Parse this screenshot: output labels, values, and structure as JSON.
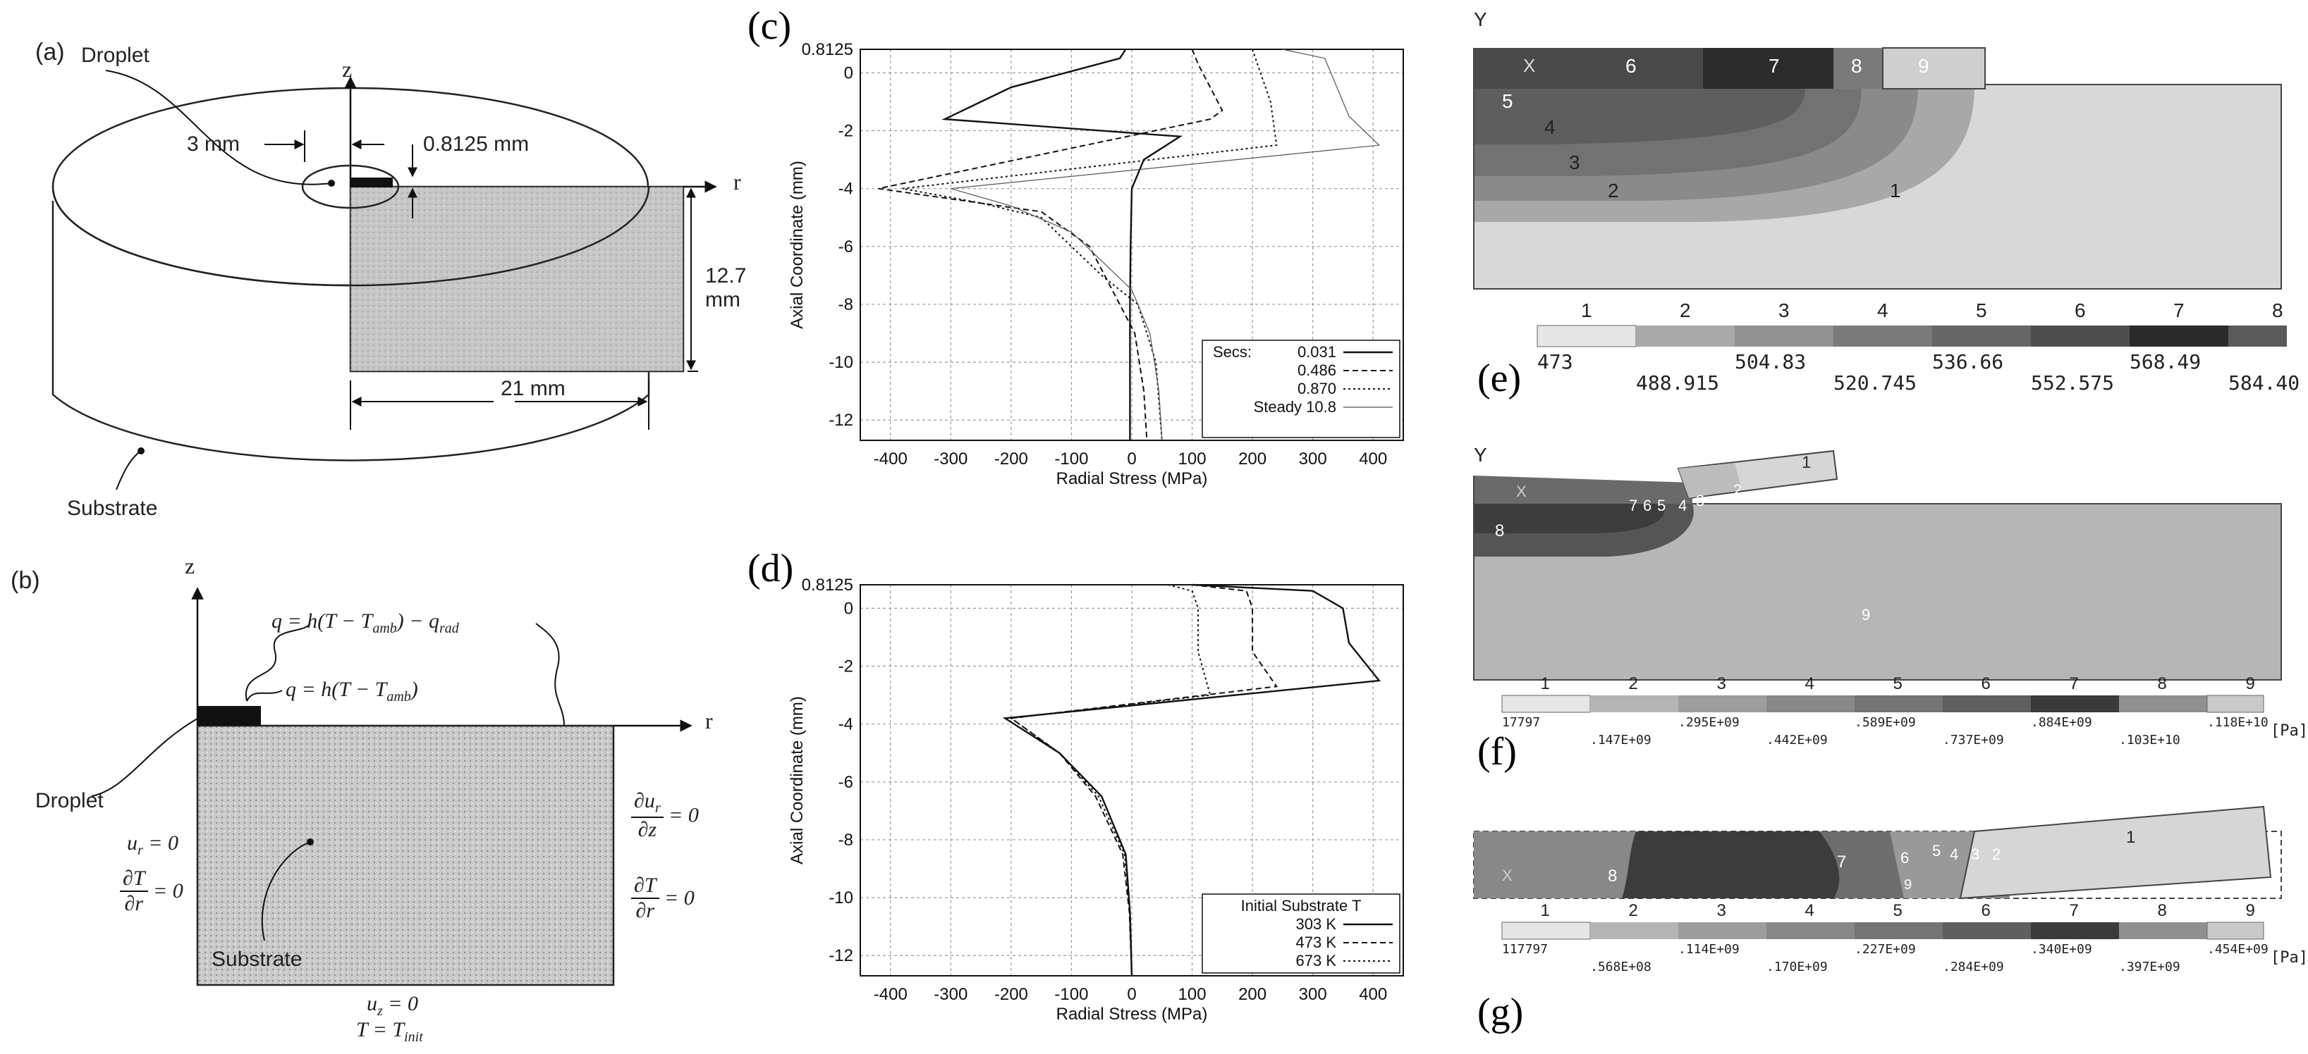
{
  "panels": {
    "a": {
      "label": "(a)",
      "droplet": "Droplet",
      "substrate": "Substrate",
      "axis_z": "z",
      "axis_r": "r",
      "dim_3mm": "3 mm",
      "dim_thickness": "0.8125 mm",
      "dim_height": "12.7 mm",
      "dim_radius": "21 mm"
    },
    "b": {
      "label": "(b)",
      "axis_z": "z",
      "axis_r": "r",
      "droplet": "Droplet",
      "substrate": "Substrate",
      "bc_top_rad": "q = h(T − T",
      "bc_top_rad_sub": "amb",
      "bc_top_rad_end": ") − q",
      "bc_top_rad_sub2": "rad",
      "bc_top": "q = h(T − T",
      "bc_top_sub": "amb",
      "bc_top_end": ")",
      "bc_left_u": "u",
      "bc_left_u_sub": "r",
      "bc_left_u_val": " = 0",
      "bc_left_dT": "∂T",
      "bc_left_dr": "∂r",
      "bc_right_dT": "∂T",
      "bc_right_dr": "∂r",
      "bc_right_du": "∂u",
      "bc_right_du_sub": "r",
      "bc_right_dz": "∂z",
      "eq_zero": "= 0",
      "bc_bottom_u": "u",
      "bc_bottom_u_sub": "z",
      "bc_bottom_u_val": " = 0",
      "bc_bottom_T": "T = T",
      "bc_bottom_T_sub": "init"
    },
    "c": {
      "label": "(c)"
    },
    "d": {
      "label": "(d)"
    },
    "e": {
      "label": "(e)",
      "axis": "Y",
      "marker": "X",
      "region_numbers": [
        "1",
        "2",
        "3",
        "4",
        "5",
        "6",
        "7",
        "8",
        "9"
      ],
      "scale_indices": [
        "1",
        "2",
        "3",
        "4",
        "5",
        "6",
        "7",
        "8"
      ],
      "scale_values_top": [
        "473",
        "504.83",
        "536.66",
        "568.49"
      ],
      "scale_values_bottom": [
        "488.915",
        "520.745",
        "552.575",
        "584.40"
      ]
    },
    "f": {
      "label": "(f)",
      "axis": "Y",
      "marker": "X",
      "region_numbers": [
        "1",
        "2",
        "3",
        "4",
        "5",
        "6",
        "7",
        "8",
        "9"
      ],
      "scale_indices": [
        "1",
        "2",
        "3",
        "4",
        "5",
        "6",
        "7",
        "8",
        "9"
      ],
      "scale_values_top": [
        "17797",
        ".295E+09",
        ".589E+09",
        ".884E+09",
        ".118E+10"
      ],
      "scale_values_bottom": [
        ".147E+09",
        ".442E+09",
        ".737E+09",
        ".103E+10"
      ],
      "unit": "[Pa]"
    },
    "g": {
      "label": "(g)",
      "marker": "X",
      "region_numbers": [
        "1",
        "2",
        "3",
        "4",
        "5",
        "6",
        "7",
        "8",
        "9"
      ],
      "scale_indices": [
        "1",
        "2",
        "3",
        "4",
        "5",
        "6",
        "7",
        "8",
        "9"
      ],
      "scale_values_top": [
        "117797",
        ".114E+09",
        ".227E+09",
        ".340E+09",
        ".454E+09"
      ],
      "scale_values_bottom": [
        ".568E+08",
        ".170E+09",
        ".284E+09",
        ".397E+09"
      ],
      "unit": "[Pa]"
    }
  },
  "chart_data": [
    {
      "type": "line",
      "panel": "c",
      "xlabel": "Radial Stress (MPa)",
      "ylabel": "Axial Coordinate (mm)",
      "xlim": [
        -450,
        450
      ],
      "ylim": [
        -12.7,
        0.8125
      ],
      "xticks": [
        "-400",
        "-300",
        "-200",
        "-100",
        "0",
        "100",
        "200",
        "300",
        "400"
      ],
      "yticks": [
        "0.8125",
        "0",
        "-2",
        "-4",
        "-6",
        "-8",
        "-10",
        "-12"
      ],
      "grid": true,
      "legend_title": "Secs:",
      "legend_position": "bottom-right",
      "series": [
        {
          "name": "0.031",
          "x": [
            -10,
            -20,
            -200,
            -310,
            80,
            20,
            0,
            -2,
            -3,
            -3,
            -3
          ],
          "y": [
            0.8125,
            0.5,
            -0.5,
            -1.6,
            -2.2,
            -3.0,
            -4.0,
            -6,
            -8,
            -10,
            -12.7
          ]
        },
        {
          "name": "0.486",
          "x": [
            100,
            110,
            150,
            130,
            -420,
            -150,
            -70,
            -20,
            5,
            20,
            25
          ],
          "y": [
            0.8125,
            0.3,
            -1.3,
            -1.6,
            -4.0,
            -4.8,
            -6,
            -8,
            -9,
            -11,
            -12.7
          ]
        },
        {
          "name": "0.870",
          "x": [
            200,
            210,
            230,
            240,
            -380,
            -250,
            -150,
            -50,
            10,
            40,
            50
          ],
          "y": [
            0.8125,
            0.2,
            -1.0,
            -2.5,
            -4.0,
            -4.5,
            -5,
            -7,
            -8,
            -10,
            -12.7
          ]
        },
        {
          "name": "Steady 10.8",
          "x": [
            250,
            320,
            360,
            410,
            -300,
            -200,
            -100,
            0,
            30,
            45,
            50
          ],
          "y": [
            0.8125,
            0.5,
            -1.5,
            -2.5,
            -4.0,
            -4.6,
            -5.5,
            -7.5,
            -9,
            -11,
            -12.7
          ]
        }
      ]
    },
    {
      "type": "line",
      "panel": "d",
      "xlabel": "Radial Stress (MPa)",
      "ylabel": "Axial Coordinate (mm)",
      "xlim": [
        -450,
        450
      ],
      "ylim": [
        -12.7,
        0.8125
      ],
      "xticks": [
        "-400",
        "-300",
        "-200",
        "-100",
        "0",
        "100",
        "200",
        "300",
        "400"
      ],
      "yticks": [
        "0.8125",
        "0",
        "-2",
        "-4",
        "-6",
        "-8",
        "-10",
        "-12"
      ],
      "grid": true,
      "legend_title": "Initial Substrate T",
      "legend_position": "bottom-right",
      "series": [
        {
          "name": "303 K",
          "x": [
            100,
            300,
            350,
            360,
            410,
            -210,
            -120,
            -50,
            -10,
            -3,
            0
          ],
          "y": [
            0.8125,
            0.6,
            0,
            -1.2,
            -2.5,
            -3.8,
            -5,
            -6.5,
            -8.5,
            -10.5,
            -12.7
          ]
        },
        {
          "name": "473 K",
          "x": [
            100,
            190,
            200,
            200,
            240,
            -200,
            -120,
            -60,
            -15,
            -4,
            0
          ],
          "y": [
            0.8125,
            0.6,
            0,
            -1.5,
            -2.7,
            -3.8,
            -5,
            -6.5,
            -8.5,
            -10.5,
            -12.7
          ]
        },
        {
          "name": "673 K",
          "x": [
            60,
            100,
            110,
            110,
            130,
            -200,
            -120,
            -55,
            -12,
            -3,
            0
          ],
          "y": [
            0.8125,
            0.6,
            0,
            -1.5,
            -3.0,
            -3.8,
            -5,
            -6.5,
            -8.5,
            -10.5,
            -12.7
          ]
        }
      ]
    }
  ]
}
